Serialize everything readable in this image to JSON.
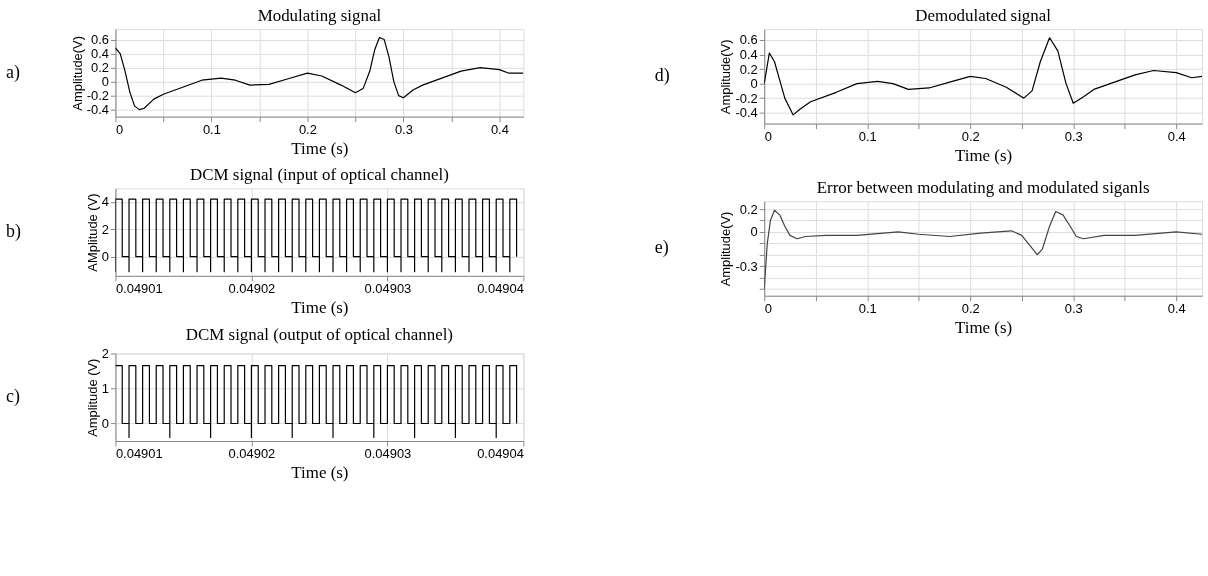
{
  "chart_data": [
    {
      "type": "line",
      "title": "Modulating signal",
      "xlabel": "Time (s)",
      "ylabel": "Amplitude(V)",
      "annotations": [
        "a)"
      ],
      "grid": true,
      "xlim": [
        0,
        0.425
      ],
      "ylim": [
        -0.5,
        0.75
      ],
      "xticks": [
        0,
        {
          "value": 0.05,
          "label": null
        },
        0.1,
        {
          "value": 0.15,
          "label": null
        },
        0.2,
        {
          "value": 0.25,
          "label": null
        },
        0.3,
        {
          "value": 0.35,
          "label": null
        },
        0.4
      ],
      "yticks": [
        -0.4,
        -0.2,
        0,
        0.2,
        0.4,
        0.6
      ],
      "series": [
        {
          "color": "#000000",
          "x": [
            0,
            0.005,
            0.01,
            0.015,
            0.02,
            0.025,
            0.03,
            0.04,
            0.05,
            0.07,
            0.09,
            0.11,
            0.125,
            0.14,
            0.16,
            0.18,
            0.2,
            0.215,
            0.235,
            0.25,
            0.258,
            0.265,
            0.27,
            0.275,
            0.28,
            0.285,
            0.29,
            0.295,
            0.3,
            0.31,
            0.32,
            0.34,
            0.36,
            0.38,
            0.4,
            0.41,
            0.425
          ],
          "values": [
            0.48,
            0.4,
            0.15,
            -0.15,
            -0.35,
            -0.4,
            -0.38,
            -0.25,
            -0.18,
            -0.08,
            0.02,
            0.05,
            0.02,
            -0.05,
            -0.04,
            0.04,
            0.12,
            0.08,
            -0.05,
            -0.16,
            -0.1,
            0.15,
            0.45,
            0.63,
            0.6,
            0.35,
            0.0,
            -0.2,
            -0.23,
            -0.12,
            -0.05,
            0.05,
            0.15,
            0.2,
            0.17,
            0.12,
            0.12
          ]
        }
      ]
    },
    {
      "type": "step",
      "title": "DCM signal (input of optical channel)",
      "xlabel": "Time (s)",
      "ylabel": "AMplitude (V)",
      "annotations": [
        "b)"
      ],
      "grid": true,
      "xlim": [
        0.04901,
        0.04904
      ],
      "ylim": [
        -1.4,
        5.0
      ],
      "xticks": [
        0.04901,
        0.04902,
        0.04903,
        0.04904
      ],
      "yticks": [
        0,
        2,
        4
      ],
      "series": [
        {
          "color": "#000000",
          "x": [
            0.04901,
            0.04901,
            0.0490105,
            0.049011,
            0.049011,
            0.0490115,
            0.049012,
            0.049012,
            0.0490125,
            0.049013,
            0.049013,
            0.0490135,
            0.049014,
            0.049014,
            0.0490145,
            0.049015,
            0.049015,
            0.0490155,
            0.049016,
            0.049016,
            0.0490165,
            0.049017,
            0.049017,
            0.0490175,
            0.049018,
            0.049018,
            0.0490185,
            0.049019,
            0.049019,
            0.0490195,
            0.04902,
            0.04902,
            0.0490205,
            0.049021,
            0.049021,
            0.0490215,
            0.049022,
            0.049022,
            0.0490225,
            0.049023,
            0.049023,
            0.0490235,
            0.049024,
            0.049024,
            0.0490245,
            0.049025,
            0.049025,
            0.0490255,
            0.049026,
            0.049026,
            0.0490265,
            0.049027,
            0.049027,
            0.0490275,
            0.049028,
            0.049028,
            0.0490285,
            0.049029,
            0.049029,
            0.0490295,
            0.04903,
            0.04903,
            0.0490305,
            0.049031,
            0.049031,
            0.0490315,
            0.049032,
            0.049032,
            0.0490325,
            0.049033,
            0.049033,
            0.0490335,
            0.049034,
            0.049034,
            0.0490345,
            0.049035,
            0.049035,
            0.0490355,
            0.049036,
            0.049036,
            0.0490365,
            0.049037,
            0.049037,
            0.0490375,
            0.049038,
            0.049038,
            0.0490385,
            0.049039,
            0.049039,
            0.0490395
          ],
          "values": [
            -1.1,
            4.2,
            0,
            -1.1,
            4.2,
            0,
            -1.1,
            4.2,
            0,
            -1.1,
            4.2,
            0,
            -1.1,
            4.2,
            0,
            -1.1,
            4.2,
            0,
            -1.1,
            4.2,
            0,
            -1.1,
            4.2,
            0,
            -1.1,
            4.2,
            0,
            -1.1,
            4.2,
            0,
            -1.1,
            4.2,
            0,
            -1.1,
            4.2,
            0,
            -1.1,
            4.2,
            0,
            -1.1,
            4.2,
            0,
            -1.1,
            4.2,
            0,
            -1.1,
            4.2,
            0,
            -1.1,
            4.2,
            0,
            -1.1,
            4.2,
            0,
            -1.1,
            4.2,
            0,
            -1.1,
            4.2,
            0,
            -1.1,
            4.2,
            0,
            -1.1,
            4.2,
            0,
            -1.1,
            4.2,
            0,
            -1.1,
            4.2,
            0,
            -1.1,
            4.2,
            0,
            -1.1,
            4.2,
            0,
            -1.1,
            4.2,
            0,
            -1.1,
            4.2,
            0,
            -1.1,
            4.2,
            0,
            -1.1,
            4.2,
            0
          ]
        }
      ]
    },
    {
      "type": "step",
      "title": "DCM signal (output of optical channel)",
      "xlabel": "Time (s)",
      "ylabel": "Amplitude (V)",
      "annotations": [
        "c)"
      ],
      "grid": true,
      "xlim": [
        0.04901,
        0.04904
      ],
      "ylim": [
        -0.5,
        2
      ],
      "xticks": [
        0.04901,
        0.04902,
        0.04903,
        0.04904
      ],
      "yticks": [
        0,
        1,
        2
      ],
      "series": [
        {
          "color": "#000000",
          "x": [
            0.04901,
            0.0490105,
            0.049011,
            0.049011,
            0.0490115,
            0.049012,
            0.0490125,
            0.049013,
            0.0490135,
            0.049014,
            0.049014,
            0.0490145,
            0.049015,
            0.0490155,
            0.049016,
            0.0490165,
            0.049017,
            0.049017,
            0.0490175,
            0.049018,
            0.0490185,
            0.049019,
            0.0490195,
            0.04902,
            0.04902,
            0.0490205,
            0.049021,
            0.0490215,
            0.049022,
            0.0490225,
            0.049023,
            0.049023,
            0.0490235,
            0.049024,
            0.0490245,
            0.049025,
            0.0490255,
            0.049026,
            0.049026,
            0.0490265,
            0.049027,
            0.0490275,
            0.049028,
            0.0490285,
            0.049029,
            0.049029,
            0.0490295,
            0.04903,
            0.0490305,
            0.049031,
            0.0490315,
            0.049032,
            0.049032,
            0.0490325,
            0.049033,
            0.0490335,
            0.049034,
            0.0490345,
            0.049035,
            0.049035,
            0.0490355,
            0.049036,
            0.0490365,
            0.049037,
            0.0490375,
            0.049038,
            0.049038,
            0.0490385,
            0.049039,
            0.0490395
          ],
          "values": [
            1.65,
            0,
            -0.4,
            1.65,
            0,
            1.65,
            0,
            1.65,
            0,
            -0.4,
            1.65,
            0,
            1.65,
            0,
            1.65,
            0,
            -0.4,
            1.65,
            0,
            1.65,
            0,
            1.65,
            0,
            -0.4,
            1.65,
            0,
            1.65,
            0,
            1.65,
            0,
            -0.4,
            1.65,
            0,
            1.65,
            0,
            1.65,
            0,
            -0.4,
            1.65,
            0,
            1.65,
            0,
            1.65,
            0,
            -0.4,
            1.65,
            0,
            1.65,
            0,
            1.65,
            0,
            -0.4,
            1.65,
            0,
            1.65,
            0,
            1.65,
            0,
            -0.4,
            1.65,
            0,
            1.65,
            0,
            1.65,
            0,
            -0.4,
            1.65,
            0,
            1.65,
            0
          ]
        }
      ]
    },
    {
      "type": "line",
      "title": "Demodulated   signal",
      "xlabel": "Time (s)",
      "ylabel": "Amplitude(V)",
      "annotations": [
        "d)"
      ],
      "grid": true,
      "xlim": [
        0,
        0.425
      ],
      "ylim": [
        -0.55,
        0.75
      ],
      "xticks": [
        0,
        {
          "value": 0.05,
          "label": null
        },
        0.1,
        {
          "value": 0.15,
          "label": null
        },
        0.2,
        {
          "value": 0.25,
          "label": null
        },
        0.3,
        {
          "value": 0.35,
          "label": null
        },
        0.4
      ],
      "yticks": [
        -0.4,
        -0.2,
        0,
        0.2,
        0.4,
        0.6
      ],
      "series": [
        {
          "color": "#000000",
          "x": [
            0,
            0.005,
            0.01,
            0.02,
            0.028,
            0.035,
            0.045,
            0.07,
            0.09,
            0.11,
            0.125,
            0.14,
            0.16,
            0.18,
            0.2,
            0.215,
            0.235,
            0.252,
            0.26,
            0.268,
            0.277,
            0.285,
            0.293,
            0.3,
            0.31,
            0.32,
            0.34,
            0.36,
            0.378,
            0.4,
            0.415,
            0.425
          ],
          "values": [
            0,
            0.42,
            0.3,
            -0.2,
            -0.43,
            -0.35,
            -0.25,
            -0.12,
            0.0,
            0.03,
            0.0,
            -0.08,
            -0.06,
            0.02,
            0.1,
            0.07,
            -0.05,
            -0.2,
            -0.1,
            0.3,
            0.63,
            0.45,
            0.0,
            -0.27,
            -0.18,
            -0.08,
            0.02,
            0.12,
            0.18,
            0.15,
            0.08,
            0.1
          ]
        }
      ]
    },
    {
      "type": "line",
      "title": "Error between modulating and modulated siganls",
      "xlabel": "Time (s)",
      "ylabel": "Amplitude(V)",
      "annotations": [
        "e)"
      ],
      "grid": true,
      "xlim": [
        0,
        0.425
      ],
      "ylim": [
        -0.56,
        0.27
      ],
      "xticks": [
        0,
        {
          "value": 0.05,
          "label": null
        },
        0.1,
        {
          "value": 0.15,
          "label": null
        },
        0.2,
        {
          "value": 0.25,
          "label": null
        },
        0.3,
        {
          "value": 0.35,
          "label": null
        },
        0.4
      ],
      "yticks": [
        {
          "value": -0.5,
          "label": null
        },
        {
          "value": -0.4,
          "label": null
        },
        -0.3,
        {
          "value": -0.2,
          "label": null
        },
        {
          "value": -0.1,
          "label": null
        },
        0,
        {
          "value": 0.1,
          "label": null
        },
        0.2
      ],
      "series": [
        {
          "color": "#444444",
          "x": [
            0,
            0.003,
            0.006,
            0.01,
            0.015,
            0.02,
            0.025,
            0.032,
            0.04,
            0.06,
            0.09,
            0.13,
            0.15,
            0.18,
            0.21,
            0.24,
            0.25,
            0.258,
            0.265,
            0.27,
            0.277,
            0.283,
            0.29,
            0.297,
            0.303,
            0.31,
            0.33,
            0.36,
            0.4,
            0.425
          ],
          "values": [
            -0.5,
            -0.1,
            0.1,
            0.19,
            0.15,
            0.05,
            -0.03,
            -0.06,
            -0.04,
            -0.03,
            -0.03,
            0.0,
            -0.02,
            -0.04,
            -0.01,
            0.01,
            -0.03,
            -0.12,
            -0.2,
            -0.15,
            0.05,
            0.18,
            0.15,
            0.05,
            -0.04,
            -0.06,
            -0.03,
            -0.03,
            0.0,
            -0.02
          ]
        }
      ]
    }
  ]
}
